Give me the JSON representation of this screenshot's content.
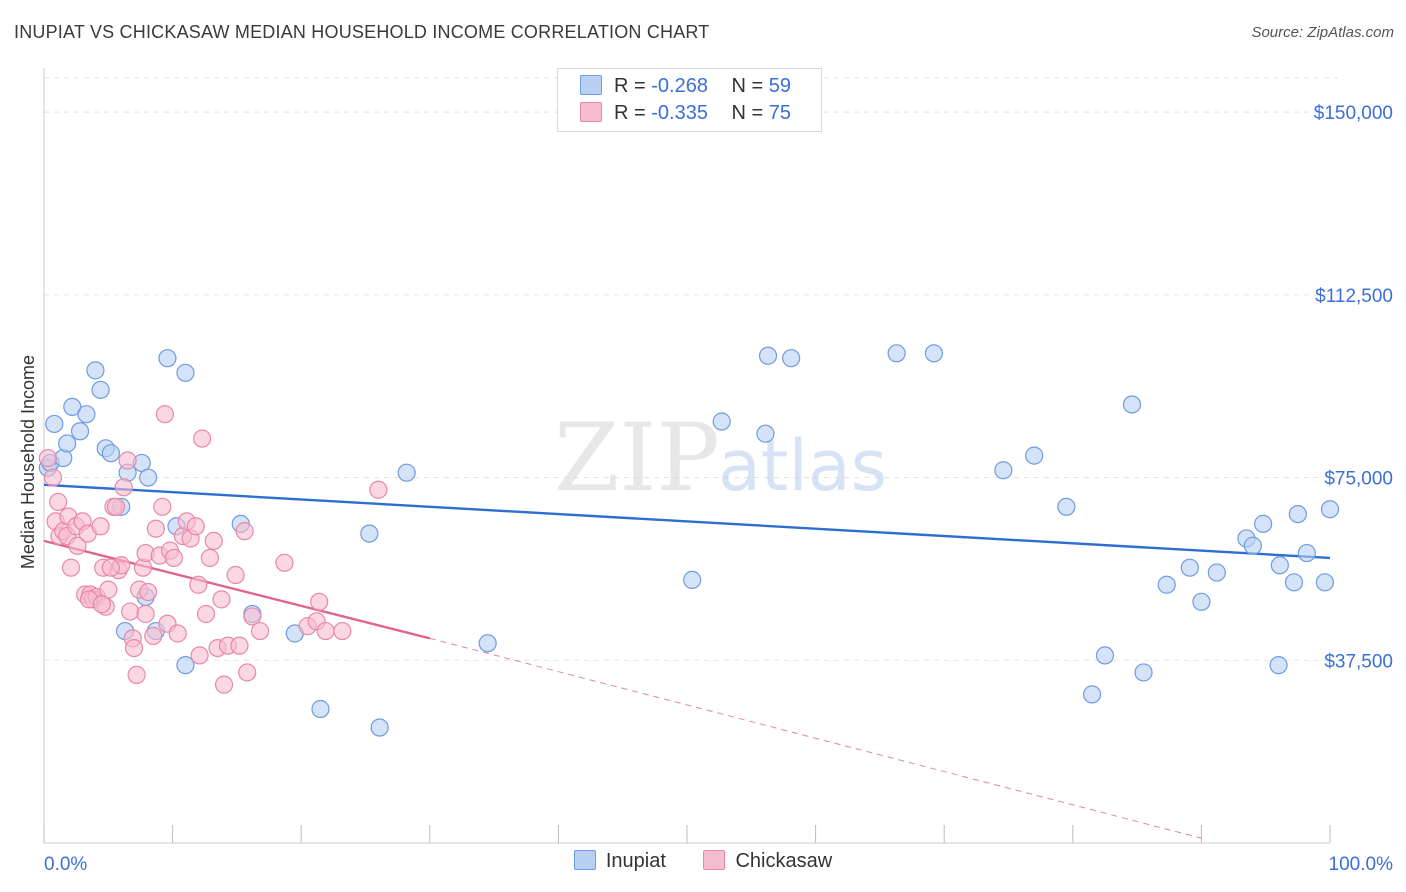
{
  "header": {
    "title": "INUPIAT VS CHICKASAW MEDIAN HOUSEHOLD INCOME CORRELATION CHART",
    "source": "Source: ZipAtlas.com"
  },
  "watermark": {
    "part1": "ZIP",
    "part2": "atlas"
  },
  "legend": {
    "items": [
      {
        "r_label": "R =",
        "r_value": "-0.268",
        "n_label": "N =",
        "n_value": "59"
      },
      {
        "r_label": "R =",
        "r_value": "-0.335",
        "n_label": "N =",
        "n_value": "75"
      }
    ]
  },
  "colors": {
    "inupiat_fill": "#b8d0f2",
    "inupiat_stroke": "#6f9be0",
    "inupiat_line": "#2d6fd0",
    "chickasaw_fill": "#f6bcd0",
    "chickasaw_stroke": "#e888a8",
    "chickasaw_line": "#e0648c",
    "value_text": "#3a6fd8",
    "grid": "#e3e3e3"
  },
  "chart_data": {
    "type": "scatter",
    "title": "INUPIAT VS CHICKASAW MEDIAN HOUSEHOLD INCOME CORRELATION CHART",
    "xlabel": "",
    "ylabel": "Median Household Income",
    "xlim": [
      0,
      100
    ],
    "ylim": [
      0,
      157000
    ],
    "x_tick_labels": [
      "0.0%",
      "100.0%"
    ],
    "y_ticks": [
      37500,
      75000,
      112500,
      150000
    ],
    "y_tick_labels": [
      "$37,500",
      "$75,000",
      "$112,500",
      "$150,000"
    ],
    "grid": true,
    "legend_position": "bottom",
    "series": [
      {
        "name": "Inupiat",
        "r": -0.268,
        "n": 59,
        "trend": {
          "x": [
            0,
            100
          ],
          "y": [
            73500,
            58500
          ]
        },
        "points": [
          [
            0.3,
            77000
          ],
          [
            0.5,
            78000
          ],
          [
            0.8,
            86000
          ],
          [
            1.5,
            79000
          ],
          [
            1.8,
            82000
          ],
          [
            2.2,
            89500
          ],
          [
            2.8,
            84500
          ],
          [
            3.3,
            88000
          ],
          [
            4.0,
            97000
          ],
          [
            4.4,
            93000
          ],
          [
            4.8,
            81000
          ],
          [
            5.2,
            80000
          ],
          [
            6.0,
            69000
          ],
          [
            6.5,
            76000
          ],
          [
            7.6,
            78000
          ],
          [
            8.1,
            75000
          ],
          [
            6.3,
            43500
          ],
          [
            7.9,
            50500
          ],
          [
            8.7,
            43500
          ],
          [
            9.6,
            99500
          ],
          [
            10.3,
            65000
          ],
          [
            11.0,
            96500
          ],
          [
            11.0,
            36500
          ],
          [
            15.3,
            65500
          ],
          [
            16.2,
            47000
          ],
          [
            19.5,
            43000
          ],
          [
            21.5,
            27500
          ],
          [
            25.3,
            63500
          ],
          [
            26.1,
            23700
          ],
          [
            28.2,
            76000
          ],
          [
            34.5,
            41000
          ],
          [
            50.4,
            54000
          ],
          [
            52.7,
            86500
          ],
          [
            56.1,
            84000
          ],
          [
            56.3,
            100000
          ],
          [
            58.1,
            99500
          ],
          [
            66.3,
            100500
          ],
          [
            69.2,
            100500
          ],
          [
            74.6,
            76500
          ],
          [
            77.0,
            79500
          ],
          [
            79.5,
            69000
          ],
          [
            81.5,
            30500
          ],
          [
            82.5,
            38500
          ],
          [
            84.6,
            90000
          ],
          [
            85.5,
            35000
          ],
          [
            87.3,
            53000
          ],
          [
            89.1,
            56500
          ],
          [
            90.0,
            49500
          ],
          [
            91.2,
            55500
          ],
          [
            93.5,
            62500
          ],
          [
            94.0,
            61000
          ],
          [
            94.8,
            65500
          ],
          [
            96.1,
            57000
          ],
          [
            97.2,
            53500
          ],
          [
            97.5,
            67500
          ],
          [
            98.2,
            59500
          ],
          [
            99.6,
            53500
          ],
          [
            100.0,
            68500
          ],
          [
            96.0,
            36500
          ]
        ]
      },
      {
        "name": "Chickasaw",
        "r": -0.335,
        "n": 75,
        "trend": {
          "x": [
            0,
            30
          ],
          "y": [
            62000,
            42000
          ]
        },
        "trend_extension": {
          "x": [
            30,
            90
          ],
          "y": [
            42000,
            1000
          ]
        },
        "points": [
          [
            0.3,
            79000
          ],
          [
            0.7,
            75000
          ],
          [
            0.9,
            66000
          ],
          [
            1.1,
            70000
          ],
          [
            1.2,
            63000
          ],
          [
            1.5,
            64000
          ],
          [
            1.8,
            63000
          ],
          [
            1.9,
            67000
          ],
          [
            2.1,
            56500
          ],
          [
            2.5,
            65000
          ],
          [
            2.6,
            61000
          ],
          [
            3.0,
            66000
          ],
          [
            3.2,
            51000
          ],
          [
            3.4,
            63500
          ],
          [
            3.6,
            51000
          ],
          [
            3.8,
            50000
          ],
          [
            4.1,
            50500
          ],
          [
            4.4,
            65000
          ],
          [
            4.6,
            56500
          ],
          [
            4.8,
            48500
          ],
          [
            5.0,
            52000
          ],
          [
            5.4,
            69000
          ],
          [
            5.6,
            69000
          ],
          [
            5.8,
            56000
          ],
          [
            6.0,
            57000
          ],
          [
            6.2,
            73000
          ],
          [
            6.5,
            78500
          ],
          [
            6.7,
            47500
          ],
          [
            6.9,
            42000
          ],
          [
            7.0,
            40000
          ],
          [
            7.2,
            34500
          ],
          [
            7.4,
            52000
          ],
          [
            7.7,
            56500
          ],
          [
            7.9,
            59500
          ],
          [
            8.1,
            51500
          ],
          [
            8.5,
            42500
          ],
          [
            8.7,
            64500
          ],
          [
            9.0,
            59000
          ],
          [
            9.2,
            69000
          ],
          [
            9.4,
            88000
          ],
          [
            9.6,
            45000
          ],
          [
            9.8,
            60000
          ],
          [
            10.1,
            58500
          ],
          [
            10.4,
            43000
          ],
          [
            10.8,
            63000
          ],
          [
            11.1,
            66000
          ],
          [
            11.4,
            62500
          ],
          [
            11.8,
            65000
          ],
          [
            12.0,
            53000
          ],
          [
            12.3,
            83000
          ],
          [
            12.6,
            47000
          ],
          [
            12.9,
            58500
          ],
          [
            13.2,
            62000
          ],
          [
            13.5,
            40000
          ],
          [
            13.8,
            50000
          ],
          [
            14.0,
            32500
          ],
          [
            14.3,
            40500
          ],
          [
            14.9,
            55000
          ],
          [
            15.2,
            40500
          ],
          [
            15.6,
            64000
          ],
          [
            15.8,
            35000
          ],
          [
            16.2,
            46500
          ],
          [
            16.8,
            43500
          ],
          [
            18.7,
            57500
          ],
          [
            20.5,
            44500
          ],
          [
            21.2,
            45500
          ],
          [
            21.4,
            49500
          ],
          [
            21.9,
            43500
          ],
          [
            23.2,
            43500
          ],
          [
            26.0,
            72500
          ],
          [
            3.5,
            50000
          ],
          [
            5.2,
            56500
          ],
          [
            7.9,
            47000
          ],
          [
            12.1,
            38500
          ],
          [
            4.5,
            49000
          ]
        ]
      }
    ]
  }
}
